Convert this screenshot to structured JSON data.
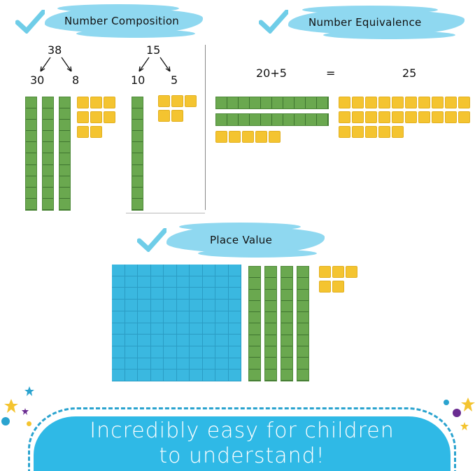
{
  "sections": {
    "composition": {
      "title": "Number Composition",
      "left": {
        "total": "38",
        "tens_label": "30",
        "ones_label": "8",
        "rods": 3,
        "units": 8
      },
      "right": {
        "total": "15",
        "tens_label": "10",
        "ones_label": "5",
        "rods": 1,
        "units": 5
      }
    },
    "equivalence": {
      "title": "Number Equivalence",
      "expression": "20+5",
      "equals": "=",
      "result": "25",
      "rods": 2,
      "units_left": 5,
      "units_right": 25
    },
    "place_value": {
      "title": "Place Value",
      "flats": 1,
      "rods": 4,
      "units": 5
    }
  },
  "banner": {
    "line1": "Incredibly easy for children",
    "line2": "to understand!"
  },
  "colors": {
    "rod": "#6aa84f",
    "unit": "#f4c430",
    "flat": "#3ab8e0",
    "banner": "#2fb9e6",
    "brush": "#8fd8f0",
    "check": "#6fcde8"
  },
  "icons": [
    "checkmark-icon",
    "star-icon",
    "arrow-icon"
  ]
}
